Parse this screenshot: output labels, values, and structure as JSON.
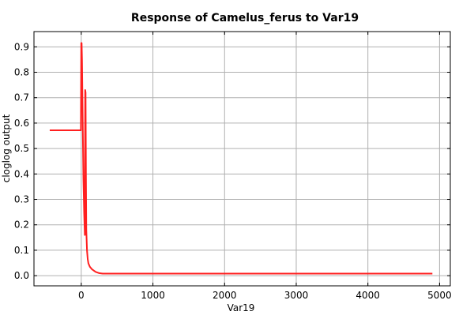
{
  "chart_data": {
    "type": "line",
    "title": "Response of Camelus_ferus to Var19",
    "xlabel": "Var19",
    "ylabel": "cloglog output",
    "xlim": [
      -660,
      5150
    ],
    "ylim": [
      -0.04,
      0.96
    ],
    "xticks": [
      0,
      1000,
      2000,
      3000,
      4000,
      5000
    ],
    "yticks": [
      0.0,
      0.1,
      0.2,
      0.3,
      0.4,
      0.5,
      0.6,
      0.7,
      0.8,
      0.9
    ],
    "xtick_labels": [
      "0",
      "1000",
      "2000",
      "3000",
      "4000",
      "5000"
    ],
    "ytick_labels": [
      "0.0",
      "0.1",
      "0.2",
      "0.3",
      "0.4",
      "0.5",
      "0.6",
      "0.7",
      "0.8",
      "0.9"
    ],
    "grid": true,
    "series": [
      {
        "color": "#ff2020",
        "x": [
          -440,
          -10,
          -5,
          0,
          5,
          10,
          20,
          30,
          40,
          50,
          55,
          60,
          65,
          70,
          80,
          90,
          100,
          120,
          150,
          200,
          250,
          300,
          400,
          1000,
          2000,
          3000,
          4000,
          4900
        ],
        "y": [
          0.572,
          0.572,
          0.572,
          0.915,
          0.915,
          0.85,
          0.6,
          0.38,
          0.25,
          0.16,
          0.73,
          0.72,
          0.4,
          0.18,
          0.1,
          0.065,
          0.048,
          0.035,
          0.025,
          0.015,
          0.01,
          0.008,
          0.008,
          0.008,
          0.008,
          0.008,
          0.008,
          0.008
        ]
      }
    ]
  }
}
